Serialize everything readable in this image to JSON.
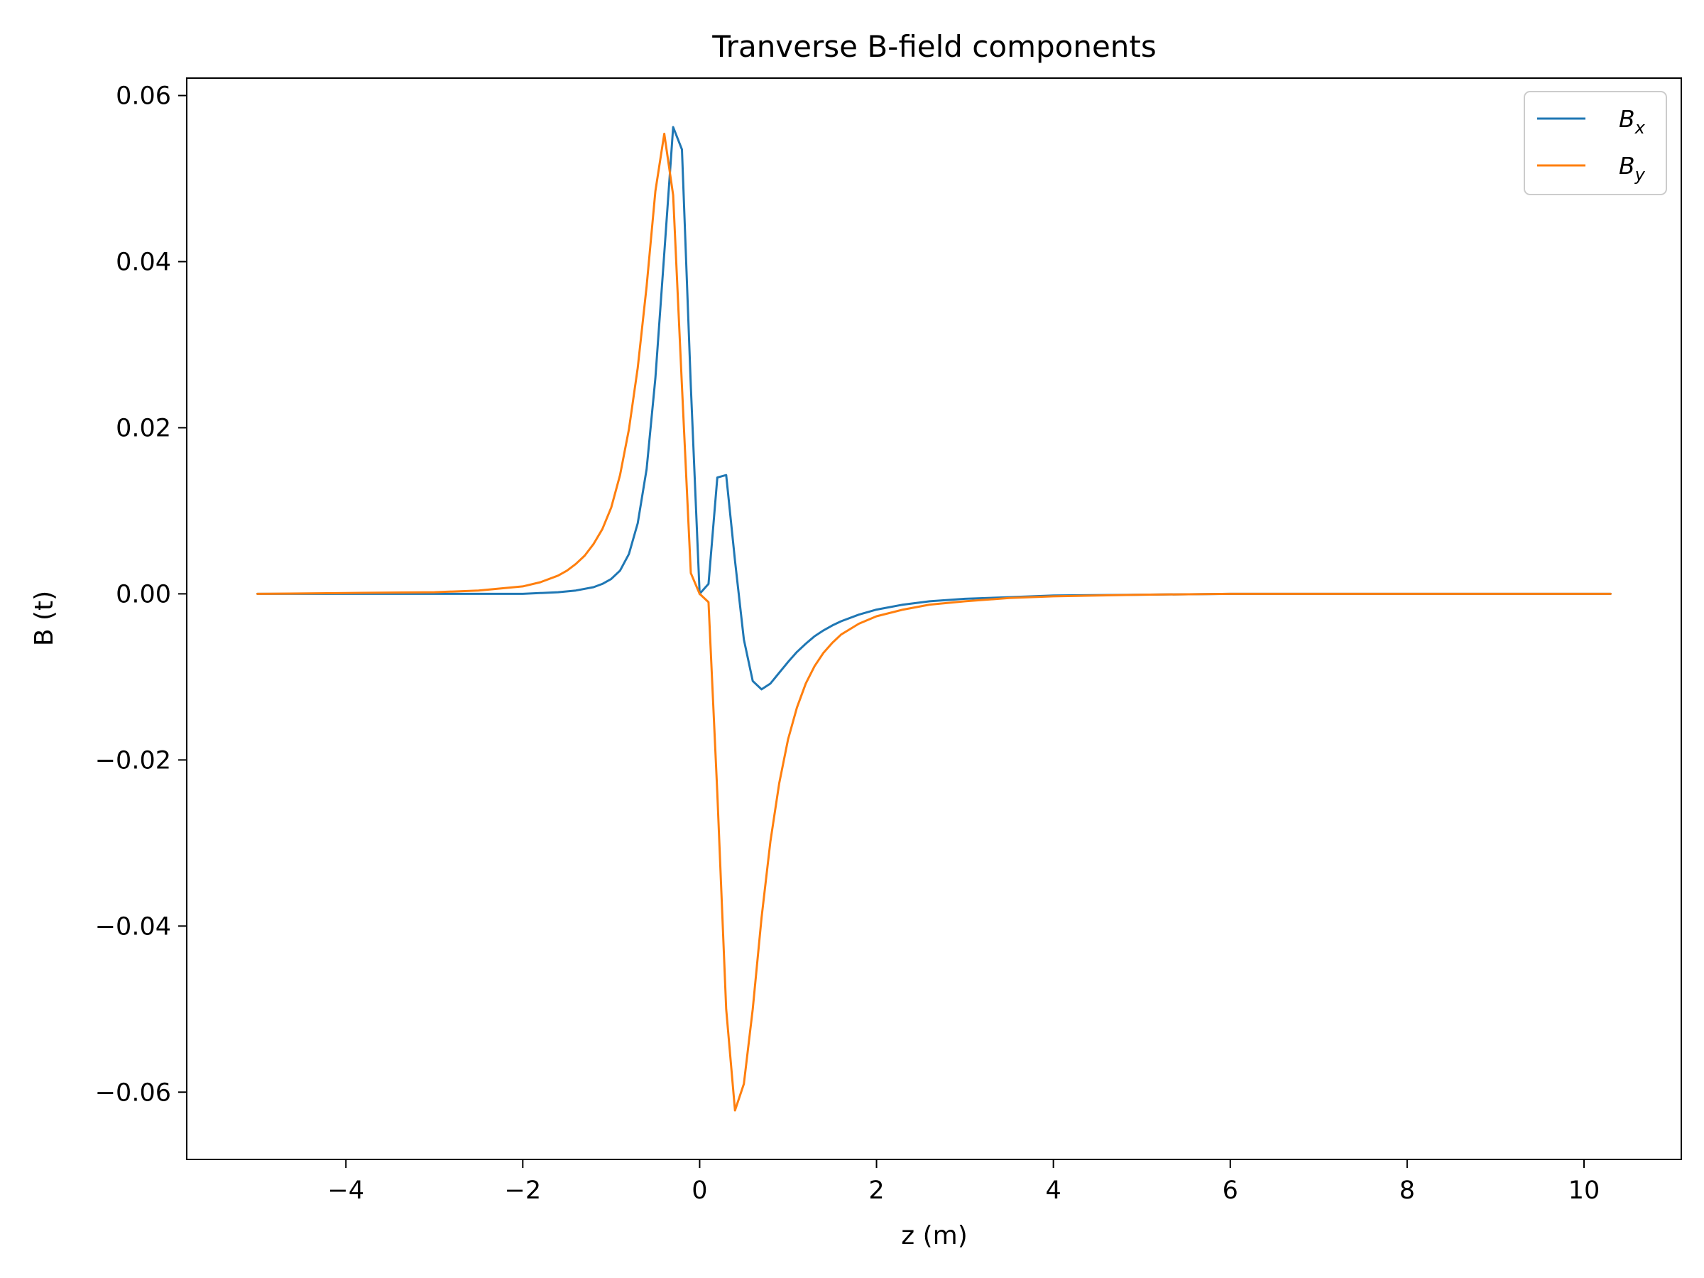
{
  "chart_data": {
    "type": "line",
    "title": "Tranverse B-field components",
    "xlabel": "z (m)",
    "ylabel": "B (t)",
    "xlim": [
      -5.8,
      11.1
    ],
    "ylim": [
      -0.0681,
      0.0621
    ],
    "xticks": [
      -4,
      -2,
      0,
      2,
      4,
      6,
      8,
      10
    ],
    "xtick_labels": [
      "−4",
      "−2",
      "0",
      "2",
      "4",
      "6",
      "8",
      "10"
    ],
    "yticks": [
      -0.06,
      -0.04,
      -0.02,
      0.0,
      0.02,
      0.04,
      0.06
    ],
    "ytick_labels": [
      "−0.06",
      "−0.04",
      "−0.02",
      "0.00",
      "0.02",
      "0.04",
      "0.06"
    ],
    "grid": false,
    "legend_position": "top-right",
    "series": [
      {
        "name": "B",
        "name_subscript": "x",
        "color": "#1f77b4",
        "points": [
          [
            -5.0,
            0.0
          ],
          [
            -4.0,
            0.0
          ],
          [
            -3.0,
            0.0
          ],
          [
            -2.0,
            0.0
          ],
          [
            -1.6,
            0.0002
          ],
          [
            -1.4,
            0.0004
          ],
          [
            -1.2,
            0.0008
          ],
          [
            -1.1,
            0.0012
          ],
          [
            -1.0,
            0.0018
          ],
          [
            -0.9,
            0.0028
          ],
          [
            -0.8,
            0.0048
          ],
          [
            -0.7,
            0.0085
          ],
          [
            -0.6,
            0.015
          ],
          [
            -0.5,
            0.026
          ],
          [
            -0.4,
            0.041
          ],
          [
            -0.3,
            0.0562
          ],
          [
            -0.2,
            0.0535
          ],
          [
            -0.1,
            0.025
          ],
          [
            0.0,
            0.0
          ],
          [
            0.1,
            0.0012
          ],
          [
            0.2,
            0.014
          ],
          [
            0.3,
            0.0143
          ],
          [
            0.4,
            0.004
          ],
          [
            0.5,
            -0.0055
          ],
          [
            0.6,
            -0.0105
          ],
          [
            0.7,
            -0.0115
          ],
          [
            0.8,
            -0.0108
          ],
          [
            0.9,
            -0.0095
          ],
          [
            1.0,
            -0.0082
          ],
          [
            1.1,
            -0.007
          ],
          [
            1.2,
            -0.006
          ],
          [
            1.3,
            -0.0051
          ],
          [
            1.4,
            -0.0044
          ],
          [
            1.5,
            -0.0038
          ],
          [
            1.6,
            -0.0033
          ],
          [
            1.8,
            -0.0025
          ],
          [
            2.0,
            -0.0019
          ],
          [
            2.3,
            -0.0013
          ],
          [
            2.6,
            -0.0009
          ],
          [
            3.0,
            -0.0006
          ],
          [
            3.5,
            -0.0004
          ],
          [
            4.0,
            -0.0002
          ],
          [
            5.0,
            -0.0001
          ],
          [
            6.0,
            0.0
          ],
          [
            8.0,
            0.0
          ],
          [
            10.3,
            0.0
          ]
        ]
      },
      {
        "name": "B",
        "name_subscript": "y",
        "color": "#ff7f0e",
        "points": [
          [
            -5.0,
            0.0
          ],
          [
            -4.0,
            0.0001
          ],
          [
            -3.0,
            0.0002
          ],
          [
            -2.5,
            0.0004
          ],
          [
            -2.0,
            0.0009
          ],
          [
            -1.8,
            0.0014
          ],
          [
            -1.6,
            0.0022
          ],
          [
            -1.5,
            0.0028
          ],
          [
            -1.4,
            0.0036
          ],
          [
            -1.3,
            0.0046
          ],
          [
            -1.2,
            0.006
          ],
          [
            -1.1,
            0.0078
          ],
          [
            -1.0,
            0.0104
          ],
          [
            -0.9,
            0.0143
          ],
          [
            -0.8,
            0.0198
          ],
          [
            -0.7,
            0.0272
          ],
          [
            -0.6,
            0.037
          ],
          [
            -0.5,
            0.0485
          ],
          [
            -0.4,
            0.0554
          ],
          [
            -0.3,
            0.048
          ],
          [
            -0.2,
            0.025
          ],
          [
            -0.1,
            0.0025
          ],
          [
            0.0,
            0.0
          ],
          [
            0.1,
            -0.001
          ],
          [
            0.2,
            -0.024
          ],
          [
            0.3,
            -0.05
          ],
          [
            0.4,
            -0.0622
          ],
          [
            0.5,
            -0.059
          ],
          [
            0.6,
            -0.05
          ],
          [
            0.7,
            -0.039
          ],
          [
            0.8,
            -0.0298
          ],
          [
            0.9,
            -0.0228
          ],
          [
            1.0,
            -0.0175
          ],
          [
            1.1,
            -0.0137
          ],
          [
            1.2,
            -0.0108
          ],
          [
            1.3,
            -0.0087
          ],
          [
            1.4,
            -0.0071
          ],
          [
            1.5,
            -0.0059
          ],
          [
            1.6,
            -0.0049
          ],
          [
            1.8,
            -0.0036
          ],
          [
            2.0,
            -0.0027
          ],
          [
            2.3,
            -0.0019
          ],
          [
            2.6,
            -0.0013
          ],
          [
            3.0,
            -0.0009
          ],
          [
            3.5,
            -0.0005
          ],
          [
            4.0,
            -0.0003
          ],
          [
            5.0,
            -0.0001
          ],
          [
            6.0,
            0.0
          ],
          [
            8.0,
            0.0
          ],
          [
            10.3,
            0.0
          ]
        ]
      }
    ]
  }
}
